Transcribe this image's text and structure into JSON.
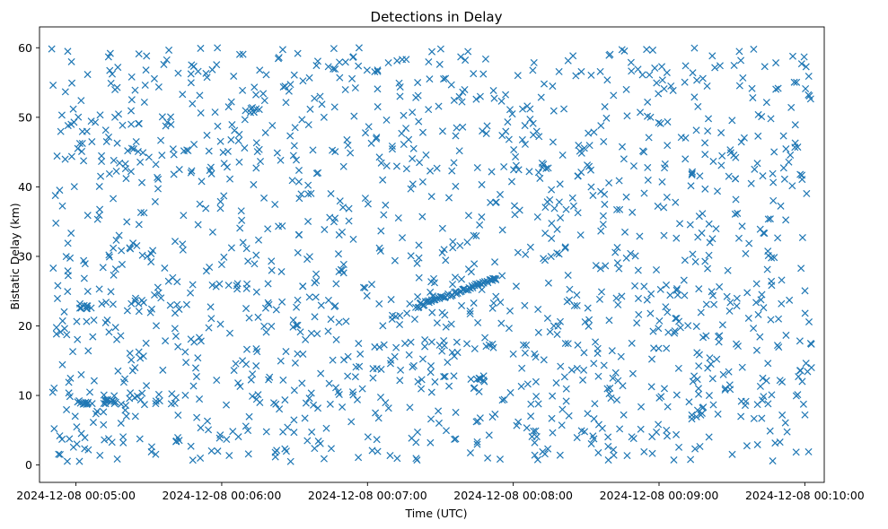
{
  "chart_data": {
    "type": "scatter",
    "title": "Detections in Delay",
    "xlabel": "Time (UTC)",
    "ylabel": "Bistatic Delay (km)",
    "marker": "x",
    "marker_color": "#1f77b4",
    "grid": false,
    "legend": "none",
    "x_axis_type": "datetime",
    "xlim": [
      "2024-12-08 00:04:45",
      "2024-12-08 00:10:08"
    ],
    "ylim": [
      -2.5,
      63
    ],
    "x_ticks": [
      "2024-12-08 00:05:00",
      "2024-12-08 00:06:00",
      "2024-12-08 00:07:00",
      "2024-12-08 00:08:00",
      "2024-12-08 00:09:00",
      "2024-12-08 00:10:00"
    ],
    "y_ticks": [
      0,
      10,
      20,
      30,
      40,
      50,
      60
    ],
    "x_range": [
      "2024-12-08 00:04:50",
      "2024-12-08 00:10:03"
    ],
    "y_range": [
      0.5,
      60
    ],
    "noise_points": 1500,
    "track": {
      "start": [
        "2024-12-08 00:07:20",
        22.8
      ],
      "end": [
        "2024-12-08 00:07:53",
        26.8
      ],
      "points": 60
    },
    "clusters": [
      {
        "time": "2024-12-08 00:05:04",
        "delay": 22.8,
        "points": 10
      },
      {
        "time": "2024-12-08 00:05:03",
        "delay": 9.1,
        "points": 10
      },
      {
        "time": "2024-12-08 00:05:14",
        "delay": 9.1,
        "points": 12
      },
      {
        "time": "2024-12-08 00:07:47",
        "delay": 12.1,
        "points": 6
      },
      {
        "time": "2024-12-08 00:06:12",
        "delay": 51.0,
        "points": 6
      }
    ]
  }
}
